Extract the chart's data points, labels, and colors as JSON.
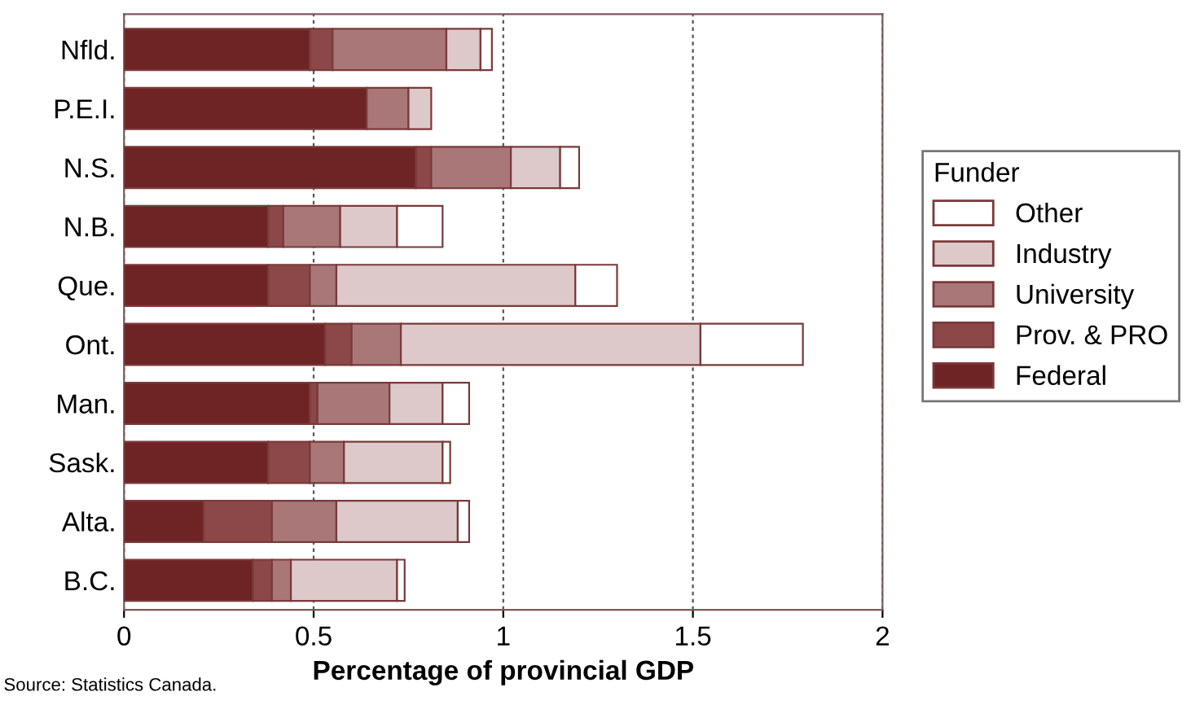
{
  "chart_data": {
    "type": "bar",
    "orientation": "horizontal",
    "stacked": true,
    "categories": [
      "Nfld.",
      "P.E.I.",
      "N.S.",
      "N.B.",
      "Que.",
      "Ont.",
      "Man.",
      "Sask.",
      "Alta.",
      "B.C."
    ],
    "series": [
      {
        "name": "Federal",
        "color": "#6e2424",
        "values": [
          0.49,
          0.64,
          0.77,
          0.38,
          0.38,
          0.53,
          0.49,
          0.38,
          0.21,
          0.34
        ]
      },
      {
        "name": "Prov. & PRO",
        "color": "#8c4848",
        "values": [
          0.06,
          null,
          0.04,
          0.04,
          0.11,
          0.07,
          0.02,
          0.11,
          0.18,
          0.05
        ]
      },
      {
        "name": "University",
        "color": "#a97777",
        "values": [
          0.3,
          0.11,
          0.21,
          0.15,
          0.07,
          0.13,
          0.19,
          0.09,
          0.17,
          0.05
        ]
      },
      {
        "name": "Industry",
        "color": "#ddc9c9",
        "values": [
          0.09,
          0.06,
          0.13,
          0.15,
          0.63,
          0.79,
          0.14,
          0.26,
          0.32,
          0.28
        ]
      },
      {
        "name": "Other",
        "color": "#ffffff",
        "values": [
          0.03,
          null,
          0.05,
          0.12,
          0.11,
          0.27,
          0.07,
          0.02,
          0.03,
          0.02
        ]
      }
    ],
    "xlabel": "Percentage of provincial GDP",
    "legend_title": "Funder",
    "legend": "right",
    "xlim": [
      0,
      2
    ],
    "xticks": [
      0,
      0.5,
      1,
      1.5,
      2
    ],
    "grid": "x",
    "annotations": [
      "Source: Statistics Canada."
    ]
  }
}
